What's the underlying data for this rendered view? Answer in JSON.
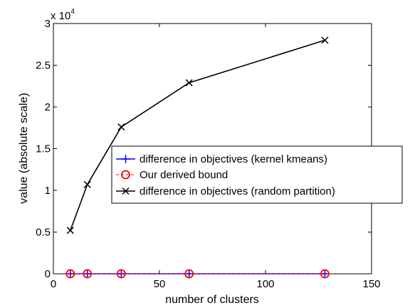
{
  "chart_data": {
    "type": "line",
    "title": "",
    "xlabel": "number of clusters",
    "ylabel": "value (absolute scale)",
    "xlim": [
      0,
      150
    ],
    "ylim": [
      0,
      30000
    ],
    "x_ticks": [
      "0",
      "50",
      "100",
      "150"
    ],
    "y_ticks": [
      "0",
      "0.5",
      "1",
      "1.5",
      "2",
      "2.5",
      "3"
    ],
    "y_multiplier_base": "x 10",
    "y_multiplier_exponent": "4",
    "grid": false,
    "legend_position": "right",
    "series": [
      {
        "name": "difference in objectives (kernel kmeans)",
        "marker": "plus",
        "line_style": "solid",
        "color": "#0000ff",
        "x": [
          8,
          16,
          32,
          64,
          128
        ],
        "y": [
          0,
          0,
          0,
          0,
          0
        ]
      },
      {
        "name": "Our derived bound",
        "marker": "circle",
        "line_style": "dashed",
        "color": "#ff0000",
        "x": [
          8,
          16,
          32,
          64,
          128
        ],
        "y": [
          0,
          0,
          0,
          0,
          0
        ]
      },
      {
        "name": "difference in objectives (random partition)",
        "marker": "x",
        "line_style": "solid",
        "color": "#000000",
        "x": [
          8,
          16,
          32,
          64,
          128
        ],
        "y": [
          5200,
          10700,
          17600,
          22900,
          28000
        ]
      }
    ]
  }
}
